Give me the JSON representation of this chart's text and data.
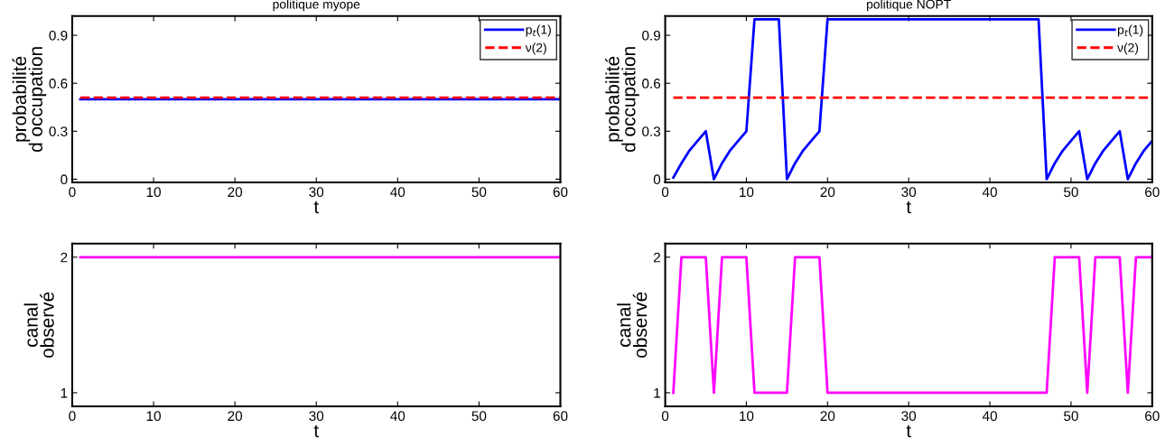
{
  "chart_data": [
    {
      "type": "line",
      "title": "politique myope",
      "xlabel": "t",
      "ylabel": "probabilité\nd occupation",
      "xlim": [
        0,
        60
      ],
      "xticks": [
        0,
        10,
        20,
        30,
        40,
        50,
        60
      ],
      "ylim": [
        -0.02,
        1.02
      ],
      "yticks": [
        0,
        0.3,
        0.6,
        0.9
      ],
      "grid": false,
      "legend": "top right",
      "series": [
        {
          "name": "p$_{t}$(1)",
          "color": "#0000ff",
          "line_style": "solid",
          "x": [
            1,
            60
          ],
          "values": [
            0.5,
            0.5
          ]
        },
        {
          "name": "ν(2)",
          "color": "#ff0000",
          "line_style": "dashed",
          "x": [
            1,
            60
          ],
          "values": [
            0.51,
            0.51
          ]
        }
      ]
    },
    {
      "type": "line",
      "title": "politique NOPT",
      "xlabel": "t",
      "ylabel": "probabilité\nd occupation",
      "xlim": [
        0,
        60
      ],
      "xticks": [
        0,
        10,
        20,
        30,
        40,
        50,
        60
      ],
      "ylim": [
        -0.02,
        1.02
      ],
      "yticks": [
        0,
        0.3,
        0.6,
        0.9
      ],
      "grid": false,
      "legend": "top right",
      "series": [
        {
          "name": "p$_{t}$(1)",
          "color": "#0000ff",
          "line_style": "solid",
          "x": [
            1,
            2,
            3,
            4,
            5,
            6,
            7,
            8,
            9,
            10,
            11,
            12,
            13,
            14,
            15,
            16,
            17,
            18,
            19,
            20,
            21,
            22,
            23,
            24,
            25,
            26,
            27,
            28,
            29,
            30,
            31,
            32,
            33,
            34,
            35,
            36,
            37,
            38,
            39,
            40,
            41,
            42,
            43,
            44,
            45,
            46,
            47,
            48,
            49,
            50,
            51,
            52,
            53,
            54,
            55,
            56,
            57,
            58,
            59,
            60
          ],
          "values": [
            0.01,
            0.1,
            0.18,
            0.24,
            0.3,
            0.0,
            0.1,
            0.18,
            0.24,
            0.3,
            1,
            1,
            1,
            1,
            0.0,
            0.1,
            0.18,
            0.24,
            0.3,
            1,
            1,
            1,
            1,
            1,
            1,
            1,
            1,
            1,
            1,
            1,
            1,
            1,
            1,
            1,
            1,
            1,
            1,
            1,
            1,
            1,
            1,
            1,
            1,
            1,
            1,
            1,
            0.0,
            0.1,
            0.18,
            0.24,
            0.3,
            0.0,
            0.1,
            0.18,
            0.24,
            0.3,
            0.0,
            0.1,
            0.18,
            0.24
          ]
        },
        {
          "name": "ν(2)",
          "color": "#ff0000",
          "line_style": "dashed",
          "x": [
            1,
            60
          ],
          "values": [
            0.51,
            0.51
          ]
        }
      ]
    },
    {
      "type": "line",
      "xlabel": "t",
      "ylabel": "canal\nobservé",
      "xlim": [
        0,
        60
      ],
      "xticks": [
        0,
        10,
        20,
        30,
        40,
        50,
        60
      ],
      "ylim": [
        0.9,
        2.1
      ],
      "yticks": [
        1,
        2
      ],
      "grid": false,
      "series": [
        {
          "color": "#ff00ff",
          "line_style": "solid",
          "x": [
            1,
            60
          ],
          "values": [
            2,
            2
          ]
        }
      ]
    },
    {
      "type": "line",
      "xlabel": "t",
      "ylabel": "canal\nobservé",
      "xlim": [
        0,
        60
      ],
      "xticks": [
        0,
        10,
        20,
        30,
        40,
        50,
        60
      ],
      "ylim": [
        0.9,
        2.1
      ],
      "yticks": [
        1,
        2
      ],
      "grid": false,
      "series": [
        {
          "color": "#ff00ff",
          "line_style": "solid",
          "x": [
            1,
            2,
            3,
            4,
            5,
            6,
            7,
            8,
            9,
            10,
            11,
            12,
            13,
            14,
            15,
            16,
            17,
            18,
            19,
            20,
            21,
            22,
            23,
            24,
            25,
            26,
            27,
            28,
            29,
            30,
            31,
            32,
            33,
            34,
            35,
            36,
            37,
            38,
            39,
            40,
            41,
            42,
            43,
            44,
            45,
            46,
            47,
            48,
            49,
            50,
            51,
            52,
            53,
            54,
            55,
            56,
            57,
            58,
            59,
            60
          ],
          "values": [
            1,
            2,
            2,
            2,
            2,
            1,
            2,
            2,
            2,
            2,
            1,
            1,
            1,
            1,
            1,
            2,
            2,
            2,
            2,
            1,
            1,
            1,
            1,
            1,
            1,
            1,
            1,
            1,
            1,
            1,
            1,
            1,
            1,
            1,
            1,
            1,
            1,
            1,
            1,
            1,
            1,
            1,
            1,
            1,
            1,
            1,
            1,
            2,
            2,
            2,
            2,
            1,
            2,
            2,
            2,
            2,
            1,
            2,
            2,
            2
          ]
        }
      ]
    }
  ]
}
